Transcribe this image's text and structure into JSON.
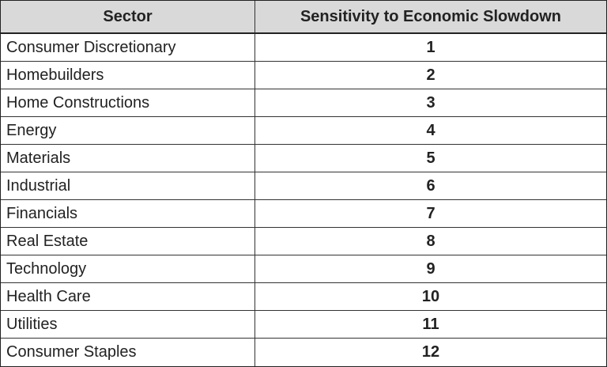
{
  "table": {
    "header": [
      "Sector",
      "Sensitivity to Economic Slowdown"
    ],
    "rows": [
      [
        "Consumer Discretionary",
        1
      ],
      [
        "Homebuilders",
        2
      ],
      [
        "Home Constructions",
        3
      ],
      [
        "Energy",
        4
      ],
      [
        "Materials",
        5
      ],
      [
        "Industrial",
        6
      ],
      [
        "Financials",
        7
      ],
      [
        "Real Estate",
        8
      ],
      [
        "Technology",
        9
      ],
      [
        "Health Care",
        10
      ],
      [
        "Utilities",
        11
      ],
      [
        "Consumer Staples",
        12
      ]
    ]
  }
}
